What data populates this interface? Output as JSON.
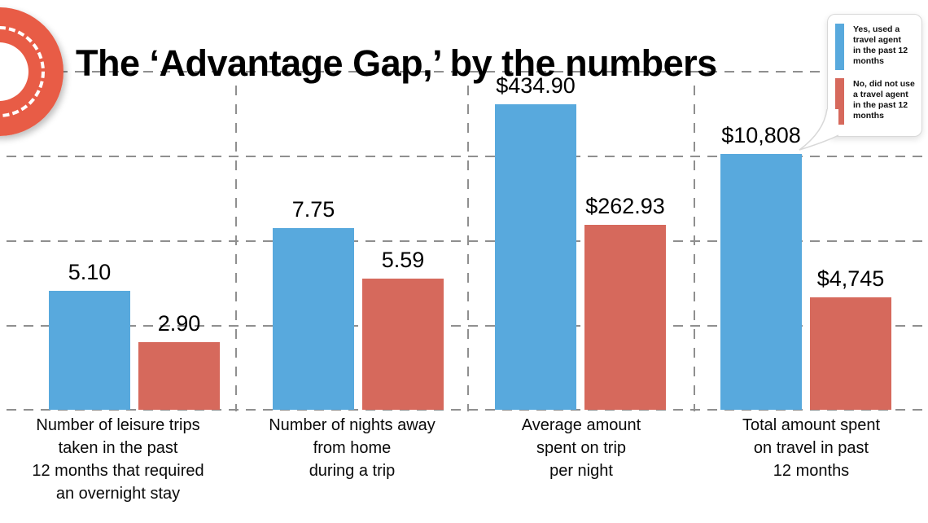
{
  "title": "The ‘Advantage Gap,’ by the numbers",
  "colors": {
    "yes": "#58a9dd",
    "no": "#d6695c",
    "logo": "#e85c46",
    "gridline": "#8f8f8f",
    "text": "#000000",
    "legend_border": "#d8d8d8"
  },
  "legend": {
    "items": [
      {
        "color_key": "yes",
        "lines": [
          "Yes, used a",
          "travel agent",
          "in the past 12",
          "months"
        ]
      },
      {
        "color_key": "no",
        "lines": [
          "No, did not use",
          "a travel agent",
          "in the past 12",
          "months"
        ]
      }
    ]
  },
  "chart_data": {
    "type": "bar",
    "title": "The ‘Advantage Gap,’ by the numbers",
    "series_names": [
      "Yes, used a travel agent in the past 12 months",
      "No, did not use a travel agent in the past 12 months"
    ],
    "legend_position": "top-right",
    "grid": "horizontal-dashed",
    "note": "Each category panel is scaled independently; bars labeled with exact values",
    "groups": [
      {
        "category": "Number of leisure trips taken in the past 12 months that required an overnight stay",
        "category_lines": [
          "Number of leisure trips",
          "taken in the past",
          "12 months that required",
          "an overnight stay"
        ],
        "bars": [
          {
            "series": "yes",
            "value": 5.1,
            "display": "5.10"
          },
          {
            "series": "no",
            "value": 2.9,
            "display": "2.90"
          }
        ]
      },
      {
        "category": "Number of nights away from home during a trip",
        "category_lines": [
          "Number of nights away",
          "from home",
          "during a trip"
        ],
        "bars": [
          {
            "series": "yes",
            "value": 7.75,
            "display": "7.75"
          },
          {
            "series": "no",
            "value": 5.59,
            "display": "5.59"
          }
        ]
      },
      {
        "category": "Average amount spent on trip per night",
        "category_lines": [
          "Average amount",
          "spent on trip",
          "per night"
        ],
        "bars": [
          {
            "series": "yes",
            "value": 434.9,
            "display": "$434.90"
          },
          {
            "series": "no",
            "value": 262.93,
            "display": "$262.93"
          }
        ]
      },
      {
        "category": "Total amount spent on travel in past 12 months",
        "category_lines": [
          "Total amount spent",
          "on travel in past",
          "12 months"
        ],
        "bars": [
          {
            "series": "yes",
            "value": 10808,
            "display": "$10,808"
          },
          {
            "series": "no",
            "value": 4745,
            "display": "$4,745"
          }
        ]
      }
    ]
  }
}
